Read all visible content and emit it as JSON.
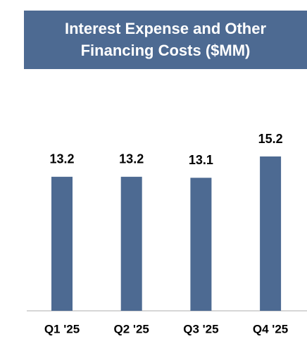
{
  "chart_data": {
    "type": "bar",
    "title": "Interest Expense and Other Financing Costs ($MM)",
    "categories": [
      "Q1 '25",
      "Q2 '25",
      "Q3 '25",
      "Q4 '25"
    ],
    "values": [
      13.2,
      13.2,
      13.1,
      15.2
    ],
    "color": "#4d6a92"
  }
}
